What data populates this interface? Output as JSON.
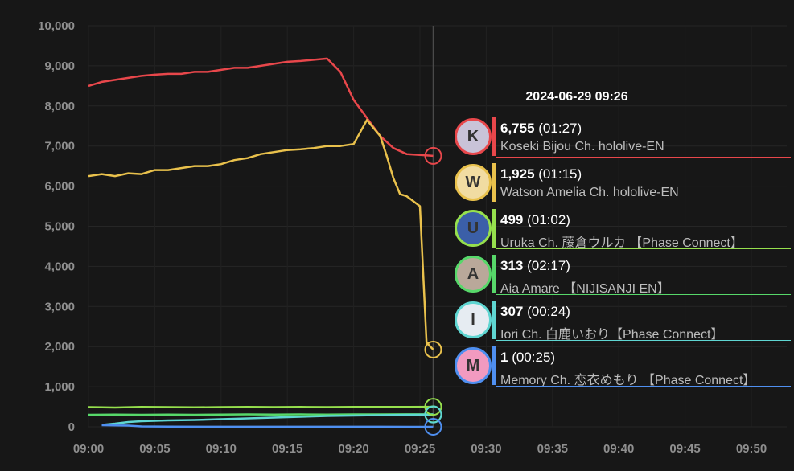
{
  "chart_data": {
    "type": "line",
    "title": "",
    "xlabel": "",
    "ylabel": "",
    "x_ticks": [
      "09:00",
      "09:05",
      "09:10",
      "09:15",
      "09:20",
      "09:25",
      "09:30",
      "09:35",
      "09:40",
      "09:45",
      "09:50"
    ],
    "y_ticks": [
      "10,000",
      "9,000",
      "8,000",
      "7,000",
      "6,000",
      "5,000",
      "4,000",
      "3,000",
      "2,000",
      "1,000",
      "0"
    ],
    "xlim_minutes": [
      0,
      53
    ],
    "ylim": [
      0,
      10000
    ],
    "cursor_minute": 26,
    "series": [
      {
        "name": "Koseki Bijou Ch. hololive-EN",
        "color": "#e8474b",
        "x": [
          0,
          1,
          2,
          3,
          4,
          5,
          6,
          7,
          8,
          9,
          10,
          11,
          12,
          13,
          14,
          15,
          16,
          17,
          18,
          19,
          20,
          21,
          22,
          23,
          24,
          25,
          26
        ],
        "y": [
          8500,
          8600,
          8650,
          8700,
          8750,
          8780,
          8800,
          8800,
          8850,
          8850,
          8900,
          8950,
          8950,
          9000,
          9050,
          9100,
          9120,
          9150,
          9180,
          8850,
          8150,
          7700,
          7250,
          6950,
          6800,
          6780,
          6755
        ]
      },
      {
        "name": "Watson Amelia Ch. hololive-EN",
        "color": "#e9c14c",
        "x": [
          0,
          1,
          2,
          3,
          4,
          5,
          6,
          7,
          8,
          9,
          10,
          11,
          12,
          13,
          14,
          15,
          16,
          17,
          18,
          19,
          20,
          21,
          22,
          22.5,
          23,
          23.5,
          24,
          25,
          25.5,
          26
        ],
        "y": [
          6250,
          6300,
          6250,
          6320,
          6300,
          6400,
          6400,
          6450,
          6500,
          6500,
          6550,
          6650,
          6700,
          6800,
          6850,
          6900,
          6920,
          6950,
          7000,
          7000,
          7050,
          7650,
          7250,
          6750,
          6200,
          5800,
          5750,
          5500,
          2100,
          1925
        ]
      },
      {
        "name": "Uruka Ch. 藤倉ウルカ 【Phase Connect】",
        "color": "#96e04d",
        "x": [
          0,
          2,
          4,
          6,
          8,
          10,
          12,
          14,
          16,
          18,
          20,
          22,
          24,
          26
        ],
        "y": [
          490,
          480,
          495,
          490,
          485,
          490,
          495,
          490,
          495,
          490,
          495,
          495,
          495,
          499
        ]
      },
      {
        "name": "Aia Amare 【NIJISANJI EN】",
        "color": "#57d86a",
        "x": [
          0,
          2,
          4,
          6,
          8,
          10,
          12,
          14,
          16,
          18,
          20,
          22,
          24,
          26
        ],
        "y": [
          300,
          305,
          300,
          305,
          300,
          305,
          310,
          305,
          310,
          305,
          310,
          310,
          312,
          313
        ]
      },
      {
        "name": "Iori Ch. 白鹿いおり【Phase Connect】",
        "color": "#5fd6d2",
        "x": [
          1,
          2,
          3,
          4,
          6,
          8,
          10,
          12,
          14,
          16,
          18,
          20,
          22,
          24,
          26
        ],
        "y": [
          50,
          80,
          120,
          140,
          160,
          170,
          190,
          210,
          230,
          250,
          270,
          280,
          290,
          300,
          307
        ]
      },
      {
        "name": "Memory Ch. 恋衣めもり 【Phase Connect】",
        "color": "#4f8ff0",
        "x": [
          1,
          3,
          4,
          6,
          10,
          14,
          18,
          22,
          25,
          26
        ],
        "y": [
          40,
          30,
          10,
          5,
          3,
          2,
          2,
          2,
          1,
          1
        ]
      }
    ]
  },
  "tooltip": {
    "time": "2024-06-29 09:26",
    "rows": [
      {
        "value": "6,755",
        "duration": "(01:27)",
        "name": "Koseki Bijou Ch. hololive-EN",
        "color": "#e8474b",
        "avatar_icon": "koseki-bijou-avatar-icon",
        "avatar_bg": "#c9c3d8",
        "initial": "K"
      },
      {
        "value": "1,925",
        "duration": "(01:15)",
        "name": "Watson Amelia Ch. hololive-EN",
        "color": "#e9c14c",
        "avatar_icon": "watson-amelia-avatar-icon",
        "avatar_bg": "#f1dca2",
        "initial": "W"
      },
      {
        "value": "499",
        "duration": "(01:02)",
        "name": "Uruka Ch. 藤倉ウルカ 【Phase Connect】",
        "color": "#96e04d",
        "avatar_icon": "uruka-avatar-icon",
        "avatar_bg": "#3b5fa8",
        "initial": "U"
      },
      {
        "value": "313",
        "duration": "(02:17)",
        "name": "Aia Amare 【NIJISANJI EN】",
        "color": "#57d86a",
        "avatar_icon": "aia-amare-avatar-icon",
        "avatar_bg": "#b9a89a",
        "initial": "A"
      },
      {
        "value": "307",
        "duration": "(00:24)",
        "name": "Iori Ch. 白鹿いおり【Phase Connect】",
        "color": "#5fd6d2",
        "avatar_icon": "iori-avatar-icon",
        "avatar_bg": "#e6ecf2",
        "initial": "I"
      },
      {
        "value": "1",
        "duration": "(00:25)",
        "name": "Memory Ch. 恋衣めもり 【Phase Connect】",
        "color": "#4f8ff0",
        "avatar_icon": "memory-avatar-icon",
        "avatar_bg": "#f29ac0",
        "initial": "M"
      }
    ]
  }
}
